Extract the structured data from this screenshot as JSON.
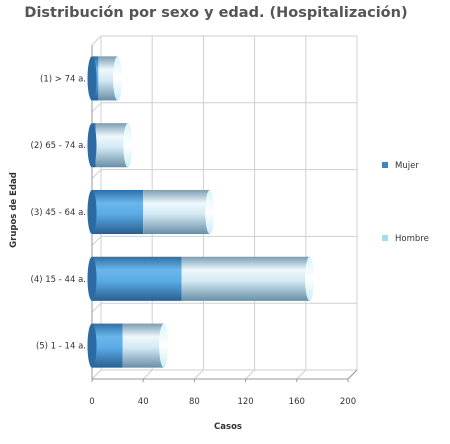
{
  "chart_data": {
    "type": "bar",
    "orientation": "horizontal",
    "stacked": true,
    "style": "3d-cylinder",
    "title": "Distribución por sexo y edad. (Hospitalización)",
    "xlabel": "Casos",
    "ylabel": "Grupos de Edad",
    "xlim": [
      0,
      200
    ],
    "xticks": [
      "0",
      "40",
      "80",
      "120",
      "160",
      "200"
    ],
    "categories": [
      "(1) > 74 a.",
      "(2) 65 - 74 a.",
      "(3) 45 - 64 a.",
      "(4) 15 - 44 a.",
      "(5) 1 - 14 a."
    ],
    "series": [
      {
        "name": "Mujer",
        "color": "#3a87c8",
        "values": [
          5,
          3,
          40,
          70,
          24
        ]
      },
      {
        "name": "Hombre",
        "color": "#a9d8f4",
        "values": [
          15,
          25,
          52,
          100,
          32
        ]
      }
    ],
    "legend_position": "right",
    "grid": true
  }
}
